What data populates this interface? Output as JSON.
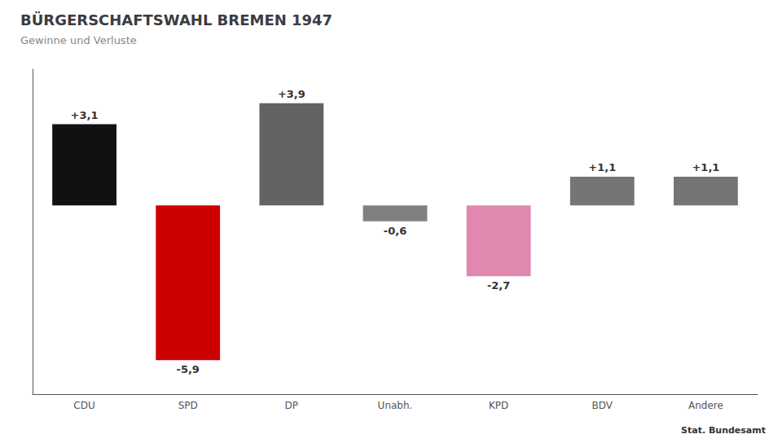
{
  "chart_data": {
    "type": "bar",
    "title": "BÜRGERSCHAFTSWAHL BREMEN 1947",
    "subtitle": "Gewinne und Verluste",
    "source": "Stat. Bundesamt",
    "categories": [
      "CDU",
      "SPD",
      "DP",
      "Unabh.",
      "KPD",
      "BDV",
      "Andere"
    ],
    "values": [
      3.1,
      -5.9,
      3.9,
      -0.6,
      -2.7,
      1.1,
      1.1
    ],
    "value_labels": [
      "+3,1",
      "-5,9",
      "+3,9",
      "-0,6",
      "-2,7",
      "+1,1",
      "+1,1"
    ],
    "data_labels": true,
    "colors": [
      "#111111",
      "#cc0000",
      "#636363",
      "#808080",
      "#e088b0",
      "#757575",
      "#757575"
    ],
    "ylim": [
      -7.2,
      5.2
    ],
    "tick_labels": "x",
    "grid": false
  }
}
